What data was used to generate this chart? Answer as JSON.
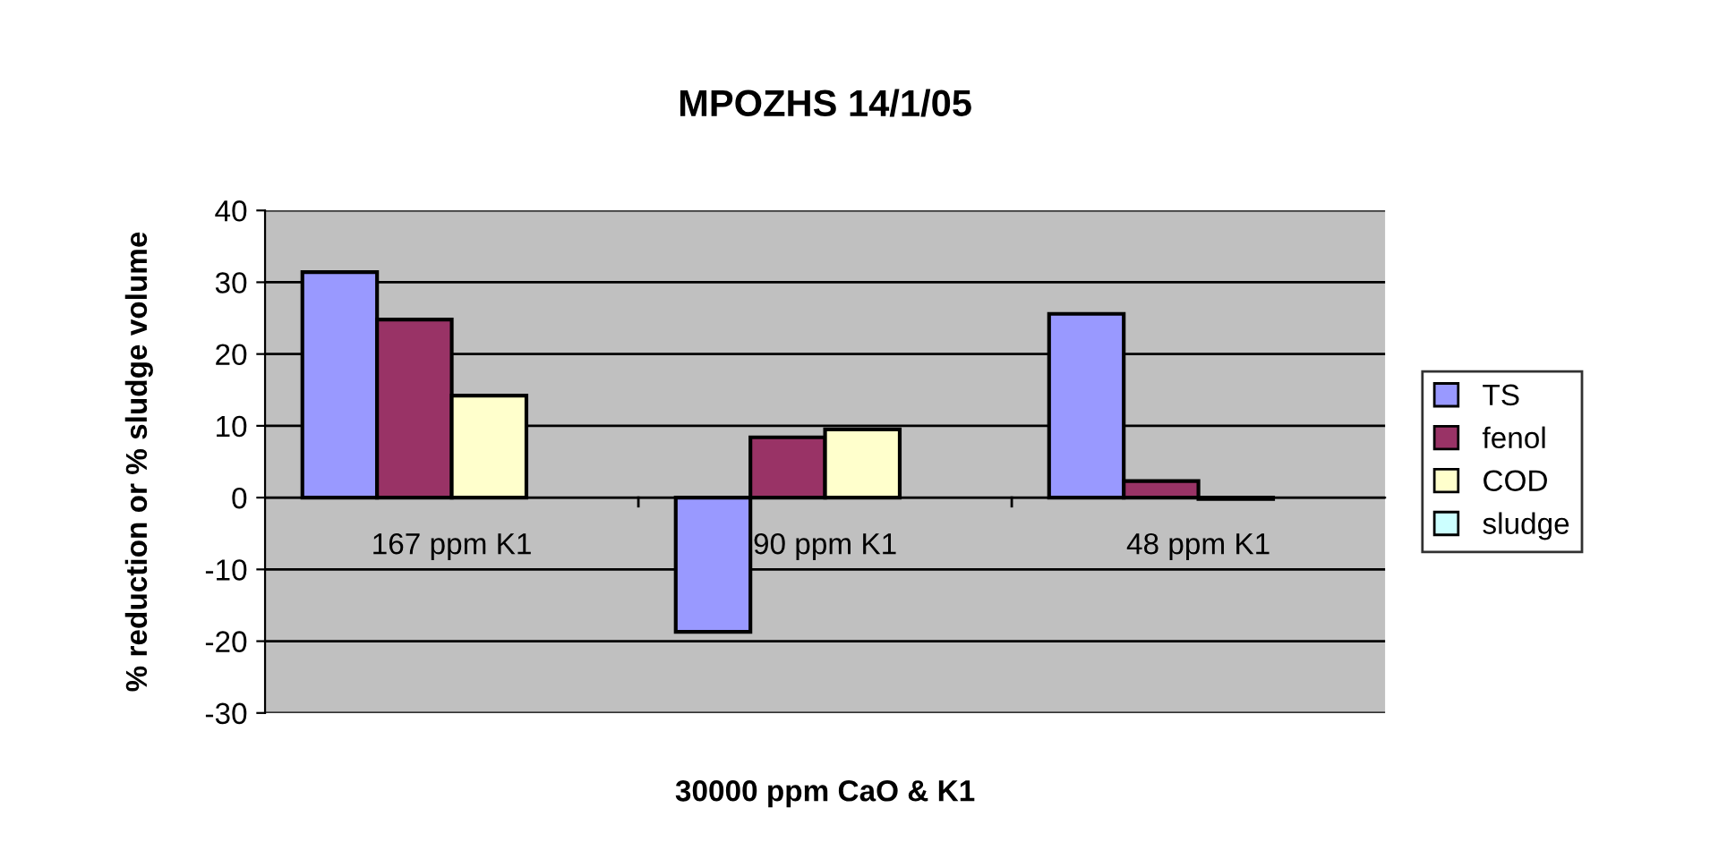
{
  "chart_data": {
    "type": "bar",
    "title": "MPOZHS 14/1/05",
    "xlabel": "30000 ppm CaO & K1",
    "ylabel": "% reduction or % sludge volume",
    "categories": [
      "167 ppm K1",
      "90 ppm K1",
      "48 ppm K1"
    ],
    "series": [
      {
        "name": "TS",
        "color": "#9999ff",
        "values": [
          31.4,
          -18.7,
          25.6
        ]
      },
      {
        "name": "fenol",
        "color": "#993366",
        "values": [
          24.8,
          8.4,
          2.3
        ]
      },
      {
        "name": "COD",
        "color": "#ffffcc",
        "values": [
          14.2,
          9.5,
          -0.2
        ]
      },
      {
        "name": "sludge",
        "color": "#ccffff",
        "values": [
          null,
          null,
          null
        ]
      }
    ],
    "ylim": [
      -30,
      40
    ],
    "yticks": [
      -30,
      -20,
      -10,
      0,
      10,
      20,
      30,
      40
    ],
    "grid": "y",
    "legend": "right"
  }
}
